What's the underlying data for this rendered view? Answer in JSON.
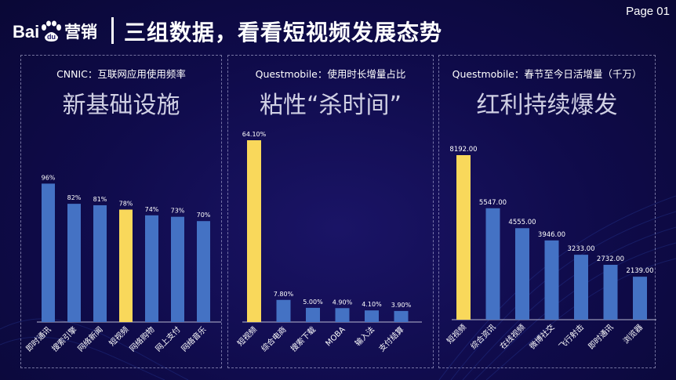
{
  "page_label": "Page 01",
  "logo": {
    "text_left": "Bai",
    "text_mid": "du",
    "text_right": "营销"
  },
  "headline": "三组数据，看看短视频发展态势",
  "colors": {
    "bar": "#4472c4",
    "highlight": "#f9d85b",
    "axis": "#b8b8d0"
  },
  "chart_data": [
    {
      "type": "bar",
      "subtitle": "CNNIC：互联网应用使用频率",
      "title": "新基础设施",
      "categories": [
        "即时通讯",
        "搜索引擎",
        "网络新闻",
        "短视频",
        "网络购物",
        "网上支付",
        "网络音乐"
      ],
      "values": [
        96,
        82,
        81,
        78,
        74,
        73,
        70
      ],
      "labels": [
        "96%",
        "82%",
        "81%",
        "78%",
        "74%",
        "73%",
        "70%"
      ],
      "highlight_index": 3,
      "ylim": [
        0,
        100
      ]
    },
    {
      "type": "bar",
      "subtitle": "Questmobile：使用时长增量占比",
      "title": "粘性“杀时间”",
      "categories": [
        "短视频",
        "综合电商",
        "搜索下载",
        "MOBA",
        "输入法",
        "支付结算"
      ],
      "values": [
        64.1,
        7.8,
        5.0,
        4.9,
        4.1,
        3.9
      ],
      "labels": [
        "64.10%",
        "7.80%",
        "5.00%",
        "4.90%",
        "4.10%",
        "3.90%"
      ],
      "highlight_index": 0,
      "ylim": [
        0,
        64.1
      ]
    },
    {
      "type": "bar",
      "subtitle": "Questmobile：春节至今日活增量（千万）",
      "title": "红利持续爆发",
      "categories": [
        "短视频",
        "综合资讯",
        "在线视频",
        "微博社交",
        "飞行射击",
        "即时通讯",
        "浏览器"
      ],
      "values": [
        8192,
        5547,
        4555,
        3946,
        3233,
        2732,
        2139
      ],
      "labels": [
        "8192.00",
        "5547.00",
        "4555.00",
        "3946.00",
        "3233.00",
        "2732.00",
        "2139.00"
      ],
      "highlight_index": 0,
      "ylim": [
        0,
        8192
      ]
    }
  ]
}
